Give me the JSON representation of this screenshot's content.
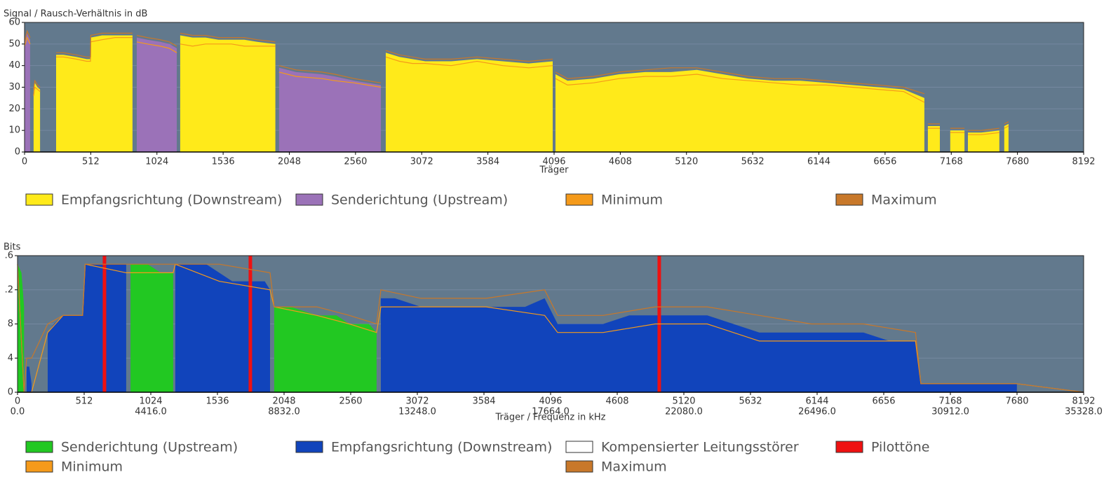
{
  "chart_data": [
    {
      "type": "area",
      "title": "Signal / Rausch-Verhältnis in dB",
      "x_label": "Träger",
      "xlim": [
        0,
        8192
      ],
      "xticks": [
        0,
        512,
        1024,
        1536,
        2048,
        2560,
        3072,
        3584,
        4096,
        4608,
        5120,
        5632,
        6144,
        6656,
        7168,
        7680,
        8192
      ],
      "ylim": [
        0,
        60
      ],
      "yticks": [
        0,
        10,
        20,
        30,
        40,
        50,
        60
      ],
      "grid": true,
      "series": [
        {
          "name": "Empfangsrichtung (Downstream)",
          "color": "#ffea1a",
          "style": "area",
          "x": [
            70,
            80,
            100,
            120,
            180,
            244,
            300,
            400,
            480,
            510,
            512,
            600,
            700,
            800,
            835,
            1190,
            1204,
            1300,
            1400,
            1500,
            1600,
            1700,
            1800,
            1940,
            2775,
            2794,
            2900,
            3000,
            3100,
            3300,
            3500,
            3700,
            3900,
            4085,
            4096,
            4107,
            4200,
            4400,
            4600,
            4800,
            5000,
            5200,
            5400,
            5600,
            5800,
            6000,
            6200,
            6400,
            6600,
            6800,
            6960,
            6975,
            6987,
            7080,
            7120,
            7160,
            7270,
            7285,
            7297,
            7400,
            7540,
            7560,
            7578,
            7611
          ],
          "values": [
            28,
            32,
            30,
            29,
            null,
            45,
            45,
            44,
            43,
            43,
            53,
            54,
            54,
            54,
            54,
            null,
            54,
            53,
            53,
            52,
            52,
            52,
            51,
            50,
            null,
            46,
            44,
            43,
            42,
            42,
            43,
            42,
            41,
            42,
            null,
            36,
            33,
            34,
            36,
            37,
            37,
            38,
            36,
            34,
            33,
            33,
            32,
            31,
            30,
            29,
            25,
            null,
            12,
            12,
            null,
            10,
            10,
            null,
            9,
            9,
            10,
            null,
            12,
            13
          ]
        },
        {
          "name": "Senderichtung (Upstream)",
          "color": "#9b72b8",
          "style": "area",
          "x": [
            0,
            20,
            43,
            500,
            868,
            950,
            1050,
            1120,
            1177,
            1500,
            1969,
            2100,
            2300,
            2400,
            2550,
            2650,
            2756
          ],
          "values": [
            50,
            55,
            52,
            null,
            53,
            52,
            51,
            50,
            48,
            null,
            39,
            37,
            36,
            35,
            33,
            32,
            31
          ]
        },
        {
          "name": "Minimum",
          "color": "#f59a1a",
          "style": "line",
          "x": [
            0,
            20,
            43,
            57,
            70,
            80,
            100,
            120,
            180,
            244,
            300,
            400,
            480,
            510,
            512,
            600,
            700,
            800,
            835,
            850,
            868,
            950,
            1050,
            1120,
            1177,
            1190,
            1204,
            1300,
            1400,
            1500,
            1600,
            1700,
            1800,
            1940,
            1955,
            1969,
            2100,
            2300,
            2400,
            2550,
            2650,
            2756,
            2775,
            2794,
            2900,
            3000,
            3100,
            3300,
            3500,
            3700,
            3900,
            4085,
            4096,
            4107,
            4200,
            4400,
            4600,
            4800,
            5000,
            5200,
            5400,
            5600,
            5800,
            6000,
            6200,
            6400,
            6600,
            6800,
            6960,
            6975,
            6987,
            7080,
            7120,
            7160,
            7270,
            7285,
            7297,
            7400,
            7540,
            7560,
            7578,
            7611
          ],
          "values": [
            49,
            53,
            50,
            null,
            26,
            30,
            29,
            28,
            null,
            44,
            44,
            43,
            42,
            42,
            51,
            52,
            53,
            53,
            53,
            null,
            51,
            50,
            49,
            48,
            46,
            null,
            50,
            49,
            50,
            50,
            50,
            49,
            49,
            49,
            null,
            37,
            35,
            34,
            33,
            32,
            31,
            30,
            null,
            44,
            42,
            41,
            41,
            40,
            42,
            40,
            39,
            40,
            null,
            34,
            31,
            32,
            34,
            35,
            35,
            36,
            34,
            33,
            32,
            31,
            31,
            30,
            29,
            28,
            23,
            null,
            11,
            11,
            null,
            9,
            9,
            null,
            8,
            8,
            9,
            null,
            11,
            12
          ]
        },
        {
          "name": "Maximum",
          "color": "#c8782a",
          "style": "line",
          "x": [
            0,
            20,
            43,
            57,
            70,
            80,
            100,
            120,
            180,
            244,
            300,
            400,
            480,
            510,
            512,
            600,
            700,
            800,
            835,
            850,
            868,
            950,
            1050,
            1120,
            1177,
            1190,
            1204,
            1300,
            1400,
            1500,
            1600,
            1700,
            1800,
            1940,
            1955,
            1969,
            2100,
            2300,
            2400,
            2550,
            2650,
            2756,
            2775,
            2794,
            2900,
            3000,
            3100,
            3300,
            3500,
            3700,
            3900,
            4085,
            4096,
            4107,
            4200,
            4400,
            4600,
            4800,
            5000,
            5200,
            5400,
            5600,
            5800,
            6000,
            6200,
            6400,
            6600,
            6800,
            6960,
            6975,
            6987,
            7080,
            7120,
            7160,
            7270,
            7285,
            7297,
            7400,
            7540,
            7560,
            7578,
            7611
          ],
          "values": [
            51,
            56,
            53,
            null,
            29,
            33,
            31,
            30,
            null,
            46,
            46,
            45,
            44,
            44,
            54,
            55,
            55,
            55,
            55,
            null,
            54,
            53,
            52,
            51,
            49,
            null,
            55,
            54,
            54,
            53,
            53,
            53,
            52,
            51,
            null,
            40,
            38,
            37,
            36,
            34,
            33,
            32,
            null,
            47,
            45,
            44,
            43,
            43,
            44,
            43,
            42,
            43,
            null,
            37,
            34,
            35,
            37,
            38,
            39,
            39,
            37,
            35,
            34,
            34,
            33,
            32,
            31,
            30,
            27,
            null,
            13,
            13,
            null,
            11,
            11,
            null,
            10,
            10,
            11,
            null,
            13,
            14
          ]
        }
      ]
    },
    {
      "type": "area",
      "title": "Bits",
      "x_label": "Träger / Frequenz in kHz",
      "xlim": [
        0,
        8192
      ],
      "xticks": [
        0,
        512,
        1024,
        1536,
        2048,
        2560,
        3072,
        3584,
        4096,
        4608,
        5120,
        5632,
        6144,
        6656,
        7168,
        7680,
        8192
      ],
      "x2lim": [
        0,
        35328
      ],
      "x2ticks": [
        {
          "value": 0,
          "label": "0.0"
        },
        {
          "value": 4416,
          "label": "4416.0"
        },
        {
          "value": 8832,
          "label": "8832.0"
        },
        {
          "value": 13248,
          "label": "13248.0"
        },
        {
          "value": 17664,
          "label": "17664.0"
        },
        {
          "value": 22080,
          "label": "22080.0"
        },
        {
          "value": 26496,
          "label": "26496.0"
        },
        {
          "value": 30912,
          "label": "30912.0"
        },
        {
          "value": 35328,
          "label": "35328.0"
        }
      ],
      "ylim": [
        0,
        16
      ],
      "yticks": [
        0,
        4,
        8,
        {
          "value": 12,
          "label": ".2"
        },
        {
          "value": 16,
          "label": ".6"
        }
      ],
      "grid": true,
      "series": [
        {
          "name": "Senderichtung (Upstream)",
          "color": "#22c822",
          "style": "area",
          "x": [
            0,
            30,
            50,
            500,
            868,
            900,
            1000,
            1100,
            1196,
            1500,
            1972,
            2100,
            2300,
            2450,
            2550,
            2700,
            2759
          ],
          "values": [
            15,
            14,
            10,
            null,
            15,
            15,
            15,
            14,
            14,
            null,
            10,
            10,
            9,
            9,
            8,
            8,
            7
          ]
        },
        {
          "name": "Empfangsrichtung (Downstream)",
          "color": "#1144bb",
          "style": "area",
          "x": [
            70,
            90,
            108,
            170,
            232,
            280,
            350,
            500,
            520,
            640,
            700,
            835,
            1000,
            1212,
            1300,
            1450,
            1550,
            1650,
            1800,
            1900,
            1940,
            2500,
            2792,
            2900,
            3100,
            3300,
            3500,
            3700,
            3900,
            4050,
            4150,
            4300,
            4500,
            4700,
            4900,
            5100,
            5300,
            5500,
            5700,
            5900,
            6100,
            6300,
            6500,
            6700,
            6900,
            6941,
            7000,
            7300,
            7500,
            7679
          ],
          "values": [
            3,
            3,
            1,
            null,
            7,
            8,
            9,
            9,
            15,
            15,
            15,
            15,
            null,
            15,
            15,
            15,
            14,
            13,
            13,
            13,
            12,
            null,
            11,
            11,
            10,
            10,
            10,
            10,
            10,
            11,
            8,
            8,
            8,
            9,
            9,
            9,
            9,
            8,
            7,
            7,
            7,
            7,
            7,
            6,
            6,
            1,
            1,
            1,
            1,
            1
          ]
        },
        {
          "name": "Kompensierter Leitungsstörer",
          "color": "#ffffff",
          "style": "area",
          "x": [],
          "values": []
        },
        {
          "name": "Pilottöne",
          "color": "#ee1111",
          "style": "bar",
          "x": [
            668,
            1789,
            4931
          ],
          "values": [
            16,
            16,
            16
          ]
        },
        {
          "name": "Minimum",
          "color": "#f59a1a",
          "style": "line",
          "x": [
            0,
            50,
            70,
            108,
            232,
            350,
            500,
            520,
            835,
            868,
            1196,
            1212,
            1550,
            1940,
            1972,
            2300,
            2550,
            2759,
            2792,
            3100,
            3600,
            4050,
            4150,
            4500,
            4900,
            5300,
            5700,
            6100,
            6500,
            6900,
            6941,
            7679,
            8192
          ],
          "values": [
            15,
            0,
            0,
            0,
            7,
            9,
            9,
            15,
            14,
            14,
            14,
            15,
            13,
            12,
            10,
            9,
            8,
            7,
            10,
            10,
            10,
            9,
            7,
            7,
            8,
            8,
            6,
            6,
            6,
            6,
            1,
            1,
            0
          ]
        },
        {
          "name": "Maximum",
          "color": "#c8782a",
          "style": "line",
          "x": [
            0,
            50,
            70,
            108,
            232,
            350,
            500,
            520,
            835,
            868,
            1196,
            1212,
            1550,
            1940,
            1972,
            2300,
            2550,
            2759,
            2792,
            3100,
            3600,
            4050,
            4150,
            4500,
            4900,
            5300,
            5700,
            6100,
            6500,
            6900,
            6941,
            7679,
            8192
          ],
          "values": [
            15,
            0,
            4,
            4,
            8,
            9,
            9,
            15,
            15,
            15,
            15,
            15,
            15,
            14,
            10,
            10,
            9,
            8,
            12,
            11,
            11,
            12,
            9,
            9,
            10,
            10,
            9,
            8,
            8,
            7,
            1,
            1,
            0
          ]
        }
      ]
    }
  ]
}
